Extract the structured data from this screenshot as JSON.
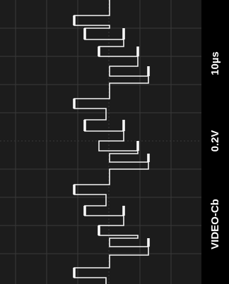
{
  "screen": {
    "timebase": "10µs",
    "scale": "0.2V",
    "channel": "VIDEO-Cb"
  }
}
